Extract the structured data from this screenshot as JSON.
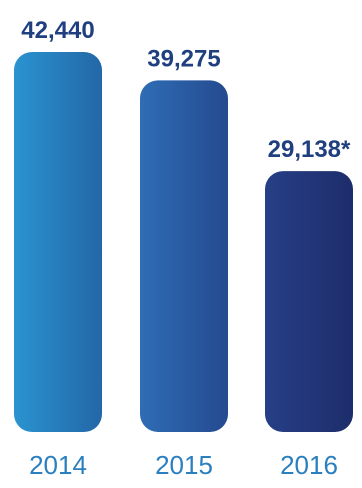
{
  "chart_data": {
    "type": "bar",
    "title": "",
    "xlabel": "",
    "ylabel": "",
    "categories": [
      "2014",
      "2015",
      "2016"
    ],
    "values": [
      42440,
      39275,
      29138
    ],
    "value_labels": [
      "42,440",
      "39,275",
      "29,138*"
    ],
    "ylim": [
      0,
      42440
    ],
    "grid": false,
    "legend": "none"
  },
  "colors": {
    "label_text": "#1f3f7f",
    "tick_text": "#2a7fbf",
    "bar_gradient": [
      {
        "start": "#2a93d0",
        "end": "#2367a7"
      },
      {
        "start": "#2f6db5",
        "end": "#244a8f"
      },
      {
        "start": "#263f86",
        "end": "#1d2d6b"
      }
    ]
  }
}
